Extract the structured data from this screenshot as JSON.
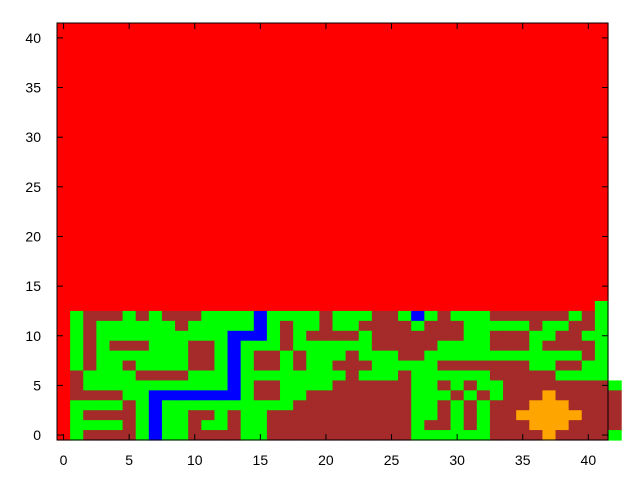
{
  "chart_data": {
    "type": "heatmap",
    "title": "",
    "xlabel": "",
    "ylabel": "",
    "xlim": [
      -0.5,
      41.5
    ],
    "ylim": [
      -0.5,
      41.5
    ],
    "x_ticks": [
      0,
      5,
      10,
      15,
      20,
      25,
      30,
      35,
      40
    ],
    "y_ticks": [
      0,
      5,
      10,
      15,
      20,
      25,
      30,
      35,
      40
    ],
    "grid": false,
    "legend": "none",
    "palette": {
      "R": "#ff0000",
      "G": "#00ff00",
      "B": "#0000ff",
      "D": "#a52a2a",
      "O": "#ffa500"
    },
    "cell_rows_top_to_bottom": [
      "RRRRRRRRRRRRRRRRRRRRRRRRRRRRRRRRRRRRRRRRRR",
      "RRRRRRRRRRRRRRRRRRRRRRRRRRRRRRRRRRRRRRRRRR",
      "RRRRRRRRRRRRRRRRRRRRRRRRRRRRRRRRRRRRRRRRRR",
      "RRRRRRRRRRRRRRRRRRRRRRRRRRRRRRRRRRRRRRRRRR",
      "RRRRRRRRRRRRRRRRRRRRRRRRRRRRRRRRRRRRRRRRRR",
      "RRRRRRRRRRRRRRRRRRRRRRRRRRRRRRRRRRRRRRRRRR",
      "RRRRRRRRRRRRRRRRRRRRRRRRRRRRRRRRRRRRRRRRRR",
      "RRRRRRRRRRRRRRRRRRRRRRRRRRRRRRRRRRRRRRRRRR",
      "RRRRRRRRRRRRRRRRRRRRRRRRRRRRRRRRRRRRRRRRRR",
      "RRRRRRRRRRRRRRRRRRRRRRRRRRRRRRRRRRRRRRRRRR",
      "RRRRRRRRRRRRRRRRRRRRRRRRRRRRRRRRRRRRRRRRRR",
      "RRRRRRRRRRRRRRRRRRRRRRRRRRRRRRRRRRRRRRRRRR",
      "RRRRRRRRRRRRRRRRRRRRRRRRRRRRRRRRRRRRRRRRRR",
      "RRRRRRRRRRRRRRRRRRRRRRRRRRRRRRRRRRRRRRRRRR",
      "RRRRRRRRRRRRRRRRRRRRRRRRRRRRRRRRRRRRRRRRRR",
      "RRRRRRRRRRRRRRRRRRRRRRRRRRRRRRRRRRRRRRRRRR",
      "RRRRRRRRRRRRRRRRRRRRRRRRRRRRRRRRRRRRRRRRRR",
      "RRRRRRRRRRRRRRRRRRRRRRRRRRRRRRRRRRRRRRRRRR",
      "RRRRRRRRRRRRRRRRRRRRRRRRRRRRRRRRRRRRRRRRRR",
      "RRRRRRRRRRRRRRRRRRRRRRRRRRRRRRRRRRRRRRRRRR",
      "RRRRRRRRRRRRRRRRRRRRRRRRRRRRRRRRRRRRRRRRRR",
      "RRRRRRRRRRRRRRRRRRRRRRRRRRRRRRRRRRRRRRRRRR",
      "RRRRRRRRRRRRRRRRRRRRRRRRRRRRRRRRRRRRRRRRRR",
      "RRRRRRRRRRRRRRRRRRRRRRRRRRRRRRRRRRRRRRRRRR",
      "RRRRRRRRRRRRRRRRRRRRRRRRRRRRRRRRRRRRRRRRRR",
      "RRRRRRRRRRRRRRRRRRRRRRRRRRRRRRRRRRRRRRRRRR",
      "RRRRRRRRRRRRRRRRRRRRRRRRRRRRRRRRRRRRRRRRRR",
      "RRRRRRRRRRRRRRRRRRRRRRRRRRRRRRRRRRRRRRRRRR",
      "RRRRRRRRRRRRRRRRRRRRRRRRRRRRRRRRRRRRRRRRRG",
      "RGDDDGDGDDDGGGGBGGGGDGGGDDGBGDGGGDDDDDDGDG",
      "RGDGGGGGGDGGGGGBGDGGDGGDDDDGDDDGGGGGDGGDDG",
      "RGDGGGGGGGGGGBBBGDGDDDDGDDDDDDDGGDDDGGDDGG",
      "RGDGDDDGGGDDGBGGGDGGGGGGDDDDDGGGGDDDGDDDDG",
      "RGDGGGGGGGDDGBGDDGDGGGDGGGDDGGGGGGGGGGGGDG",
      "RGDGGDGGGGDDGBGDDGDGGDDDGGGGGDDDDDDDGGDDGG",
      "RDGGGGDDDDGGGBGGGGGGGGDGGGDGGGGGGDDDDDGGGG",
      "RDGGGGGGGGGGGBGDDGGGGDDDDDDGGDGDGGDDDDDDDDG",
      "RDDDDGGBBBBBBBGDDGGDDDDDDDDGGGDGDGDDDODDDDD",
      "RGGGGDGBGGGGGGGGGGDDDDDDDDDGGDGDGDDDOOODDDD",
      "RGDDDDGBGGDDGDGGDDDDDDDDDDDGGDGDGDDOOOOODDD",
      "RGGGGDGBGGDGGDGGDDDDDDDDDDDGDDGDGDDDOOODDDD",
      "RGDDDDGBGGDDDDGGDDDDDDDDDDDGGGGGGDDDDODDDDG"
    ]
  }
}
